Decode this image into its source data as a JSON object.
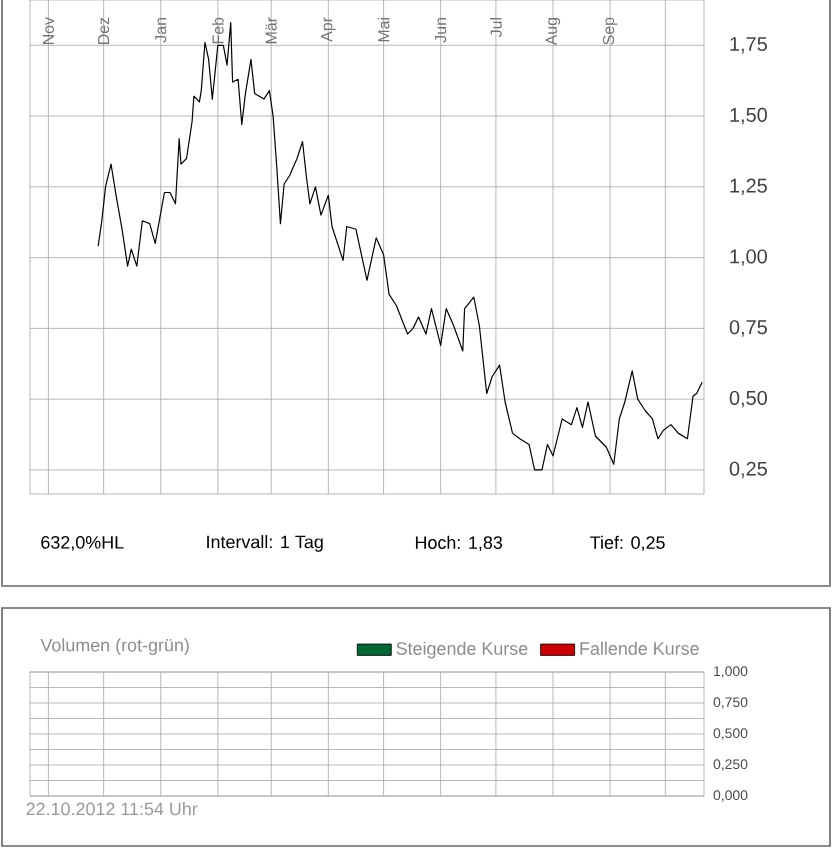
{
  "chart_data": [
    {
      "type": "line",
      "x": [
        "2011-11-28",
        "2011-11-30",
        "2011-12-02",
        "2011-12-05",
        "2011-12-08",
        "2011-12-11",
        "2011-12-14",
        "2011-12-16",
        "2011-12-19",
        "2011-12-22",
        "2011-12-26",
        "2011-12-29",
        "2012-01-03",
        "2012-01-06",
        "2012-01-09",
        "2012-01-11",
        "2012-01-12",
        "2012-01-15",
        "2012-01-18",
        "2012-01-19",
        "2012-01-22",
        "2012-01-23",
        "2012-01-25",
        "2012-01-27",
        "2012-01-29",
        "2012-02-01",
        "2012-02-04",
        "2012-02-06",
        "2012-02-08",
        "2012-02-09",
        "2012-02-12",
        "2012-02-14",
        "2012-02-16",
        "2012-02-19",
        "2012-02-21",
        "2012-02-26",
        "2012-02-29",
        "2012-03-02",
        "2012-03-04",
        "2012-03-06",
        "2012-03-08",
        "2012-03-11",
        "2012-03-15",
        "2012-03-18",
        "2012-03-20",
        "2012-03-22",
        "2012-03-25",
        "2012-03-28",
        "2012-04-01",
        "2012-04-03",
        "2012-04-09",
        "2012-04-11",
        "2012-04-16",
        "2012-04-19",
        "2012-04-22",
        "2012-04-27",
        "2012-05-01",
        "2012-05-04",
        "2012-05-08",
        "2012-05-14",
        "2012-05-17",
        "2012-05-20",
        "2012-05-24",
        "2012-05-27",
        "2012-06-01",
        "2012-06-04",
        "2012-06-08",
        "2012-06-13",
        "2012-06-14",
        "2012-06-19",
        "2012-06-22",
        "2012-06-26",
        "2012-06-29",
        "2012-07-03",
        "2012-07-06",
        "2012-07-10",
        "2012-07-14",
        "2012-07-19",
        "2012-07-22",
        "2012-07-26",
        "2012-07-29",
        "2012-08-01",
        "2012-08-06",
        "2012-08-11",
        "2012-08-14",
        "2012-08-17",
        "2012-08-20",
        "2012-08-24",
        "2012-08-30",
        "2012-09-03",
        "2012-09-06",
        "2012-09-09",
        "2012-09-13",
        "2012-09-16",
        "2012-09-20",
        "2012-09-24",
        "2012-09-27",
        "2012-09-30",
        "2012-10-04",
        "2012-10-08",
        "2012-10-13",
        "2012-10-16",
        "2012-10-18",
        "2012-10-21"
      ],
      "values": [
        1.04,
        1.13,
        1.25,
        1.33,
        1.21,
        1.1,
        0.97,
        1.03,
        0.97,
        1.13,
        1.12,
        1.05,
        1.23,
        1.23,
        1.19,
        1.42,
        1.33,
        1.35,
        1.48,
        1.57,
        1.55,
        1.59,
        1.76,
        1.7,
        1.56,
        1.75,
        1.75,
        1.68,
        1.83,
        1.62,
        1.63,
        1.47,
        1.58,
        1.7,
        1.58,
        1.56,
        1.59,
        1.5,
        1.32,
        1.12,
        1.26,
        1.29,
        1.35,
        1.41,
        1.29,
        1.19,
        1.25,
        1.15,
        1.22,
        1.11,
        0.99,
        1.11,
        1.1,
        1.01,
        0.92,
        1.07,
        1.01,
        0.87,
        0.83,
        0.73,
        0.75,
        0.79,
        0.73,
        0.82,
        0.69,
        0.82,
        0.76,
        0.67,
        0.82,
        0.86,
        0.76,
        0.52,
        0.58,
        0.62,
        0.49,
        0.38,
        0.36,
        0.34,
        0.25,
        0.25,
        0.34,
        0.3,
        0.43,
        0.41,
        0.47,
        0.4,
        0.49,
        0.37,
        0.33,
        0.27,
        0.43,
        0.49,
        0.6,
        0.5,
        0.46,
        0.43,
        0.36,
        0.39,
        0.41,
        0.38,
        0.36,
        0.51,
        0.52,
        0.56
      ],
      "color": "#000000",
      "xlim": [
        "2011-10-22",
        "2012-10-22"
      ],
      "xticks": [
        {
          "value": "2011-11-01",
          "label": "Nov"
        },
        {
          "value": "2011-12-01",
          "label": "Dez"
        },
        {
          "value": "2012-01-01",
          "label": "Jan"
        },
        {
          "value": "2012-02-01",
          "label": "Feb"
        },
        {
          "value": "2012-03-01",
          "label": "Mär"
        },
        {
          "value": "2012-04-01",
          "label": "Apr"
        },
        {
          "value": "2012-05-01",
          "label": "Mai"
        },
        {
          "value": "2012-06-01",
          "label": "Jun"
        },
        {
          "value": "2012-07-01",
          "label": "Jul"
        },
        {
          "value": "2012-08-01",
          "label": "Aug"
        },
        {
          "value": "2012-09-01",
          "label": "Sep"
        },
        {
          "value": "2012-10-01",
          "label": null
        }
      ],
      "ylim": [
        0.165,
        1.91
      ],
      "yticks": [
        {
          "value": 0.25,
          "label": "0,25"
        },
        {
          "value": 0.5,
          "label": "0,50"
        },
        {
          "value": 0.75,
          "label": "0,75"
        },
        {
          "value": 1.0,
          "label": "1,00"
        },
        {
          "value": 1.25,
          "label": "1,25"
        },
        {
          "value": 1.5,
          "label": "1,50"
        },
        {
          "value": 1.75,
          "label": "1,75"
        }
      ],
      "grid": true,
      "annotations": [
        "632,0%HL",
        "Intervall: 1 Tag",
        "Hoch: 1,83",
        "Tief: 0,25"
      ]
    },
    {
      "type": "bar",
      "title": "Volumen (rot-grün)",
      "series": [
        {
          "name": "Steigende Kurse",
          "color": "#006633"
        },
        {
          "name": "Fallende Kurse",
          "color": "#cc0000"
        }
      ],
      "ylim": [
        0,
        1
      ],
      "yticks": [
        {
          "value": 0,
          "label": "0,000"
        },
        {
          "value": 0.125,
          "label": null
        },
        {
          "value": 0.25,
          "label": "0,250"
        },
        {
          "value": 0.375,
          "label": null
        },
        {
          "value": 0.5,
          "label": "0,500"
        },
        {
          "value": 0.625,
          "label": null
        },
        {
          "value": 0.75,
          "label": "0,750"
        },
        {
          "value": 0.875,
          "label": null
        },
        {
          "value": 1,
          "label": "1,000"
        }
      ],
      "grid": true,
      "legend": "top right",
      "tick_labels": "y",
      "annotations": [
        "22.10.2012 11:54 Uhr"
      ]
    }
  ]
}
